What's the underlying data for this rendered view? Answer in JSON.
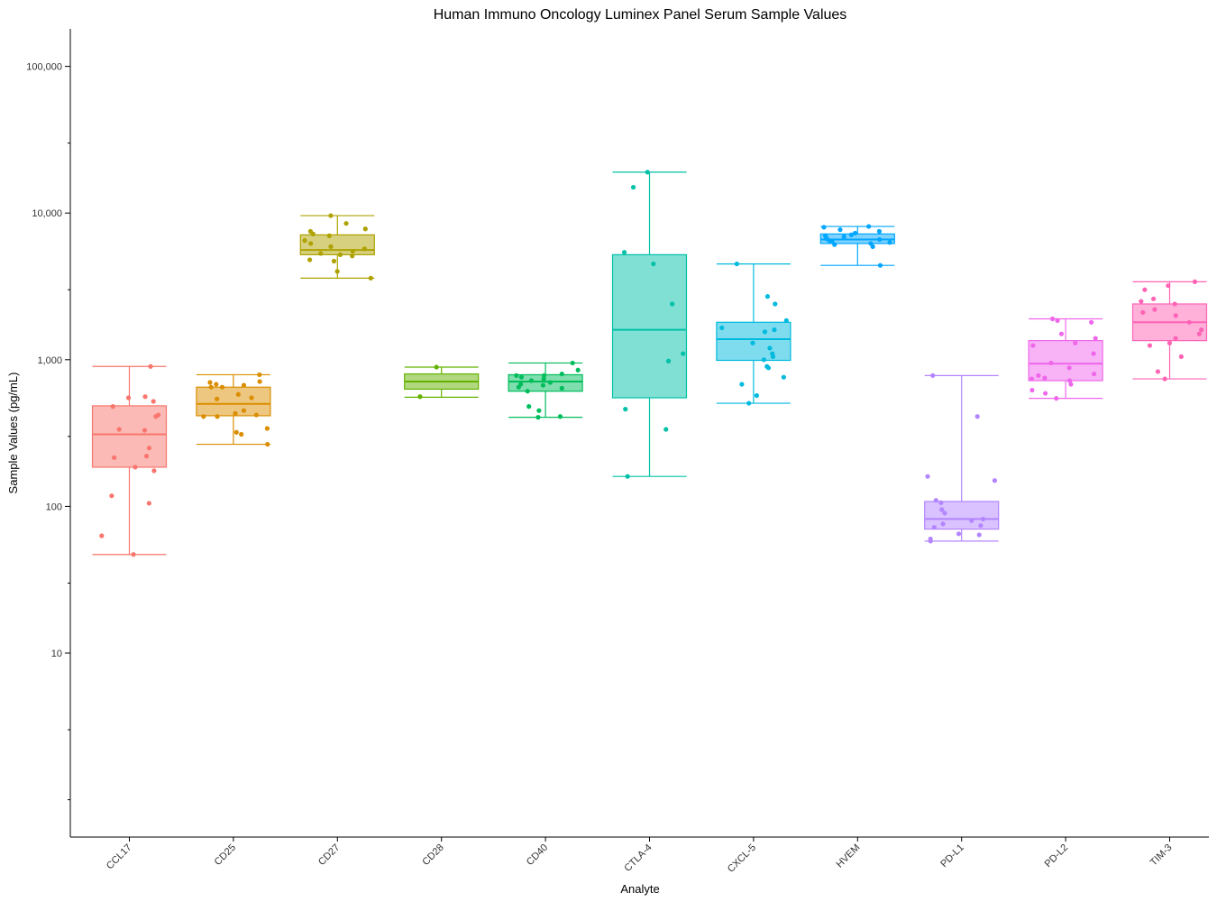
{
  "chart_data": {
    "type": "box",
    "title": "Human Immuno Oncology Luminex Panel Serum Sample Values",
    "xlabel": "Analyte",
    "ylabel": "Sample Values (pg/mL)",
    "yscale": "log10",
    "ylim": [
      0.55,
      180000
    ],
    "yticks": [
      {
        "value": 10,
        "label": "10"
      },
      {
        "value": 100,
        "label": "100"
      },
      {
        "value": 1000,
        "label": "1,000"
      },
      {
        "value": 10000,
        "label": "10,000"
      },
      {
        "value": 100000,
        "label": "100,000"
      }
    ],
    "minor_ticks": [
      1,
      3,
      30,
      300,
      3000,
      30000
    ],
    "grid": false,
    "legend": "none",
    "categories": [
      "CCL17",
      "CD25",
      "CD27",
      "CD28",
      "CD40",
      "CTLA-4",
      "CXCL-5",
      "HVEM",
      "PD-L1",
      "PD-L2",
      "TIM-3"
    ],
    "colors": [
      "#F8766D",
      "#DB8E00",
      "#AEA200",
      "#64B200",
      "#00BD5C",
      "#00C1A7",
      "#00BADE",
      "#00A6FF",
      "#B385FF",
      "#EF67EB",
      "#FF63B6"
    ],
    "boxes": [
      {
        "q1": 185,
        "median": 310,
        "q3": 485,
        "low": 47,
        "high": 900
      },
      {
        "q1": 415,
        "median": 500,
        "q3": 650,
        "low": 265,
        "high": 790
      },
      {
        "q1": 5200,
        "median": 5600,
        "q3": 7100,
        "low": 3600,
        "high": 9600
      },
      {
        "q1": 630,
        "median": 710,
        "q3": 800,
        "low": 555,
        "high": 890
      },
      {
        "q1": 610,
        "median": 710,
        "q3": 790,
        "low": 405,
        "high": 950
      },
      {
        "q1": 550,
        "median": 1600,
        "q3": 5200,
        "low": 160,
        "high": 19000
      },
      {
        "q1": 990,
        "median": 1380,
        "q3": 1800,
        "low": 505,
        "high": 4500
      },
      {
        "q1": 6200,
        "median": 6600,
        "q3": 7200,
        "low": 4400,
        "high": 8100
      },
      {
        "q1": 70,
        "median": 82,
        "q3": 108,
        "low": 58,
        "high": 780
      },
      {
        "q1": 720,
        "median": 940,
        "q3": 1350,
        "low": 545,
        "high": 1900
      },
      {
        "q1": 1350,
        "median": 1800,
        "q3": 2400,
        "low": 740,
        "high": 3400
      }
    ],
    "points": [
      [
        900,
        520,
        560,
        550,
        480,
        420,
        410,
        335,
        330,
        250,
        220,
        215,
        185,
        175,
        118,
        105,
        63,
        47
      ],
      [
        790,
        710,
        700,
        680,
        670,
        650,
        650,
        580,
        550,
        540,
        450,
        430,
        420,
        410,
        410,
        340,
        320,
        310,
        265
      ],
      [
        9600,
        8500,
        7800,
        7500,
        7200,
        7000,
        6500,
        6200,
        5900,
        5700,
        5500,
        5300,
        5200,
        5100,
        4800,
        4700,
        4000,
        3600
      ],
      [
        890,
        560
      ],
      [
        950,
        850,
        800,
        780,
        780,
        760,
        740,
        720,
        700,
        680,
        670,
        650,
        640,
        610,
        480,
        450,
        410,
        405
      ],
      [
        19000,
        15000,
        5400,
        4500,
        2400,
        1100,
        980,
        460,
        335,
        160
      ],
      [
        4500,
        2700,
        2400,
        1850,
        1650,
        1600,
        1550,
        1300,
        1200,
        1100,
        1050,
        1000,
        900,
        880,
        760,
        680,
        570,
        505
      ],
      [
        8100,
        8000,
        7700,
        7500,
        7300,
        7100,
        7000,
        6900,
        6800,
        6700,
        6600,
        6500,
        6400,
        6300,
        6200,
        6100,
        5900,
        4400
      ],
      [
        780,
        410,
        160,
        150,
        110,
        106,
        95,
        90,
        82,
        80,
        76,
        74,
        72,
        65,
        64,
        60,
        58
      ],
      [
        1900,
        1850,
        1800,
        1500,
        1400,
        1300,
        1250,
        1100,
        950,
        880,
        800,
        780,
        750,
        740,
        720,
        680,
        620,
        590,
        545
      ],
      [
        3400,
        3200,
        3000,
        2600,
        2500,
        2400,
        2200,
        2100,
        2000,
        1800,
        1600,
        1500,
        1400,
        1300,
        1250,
        1050,
        830,
        740
      ]
    ]
  }
}
